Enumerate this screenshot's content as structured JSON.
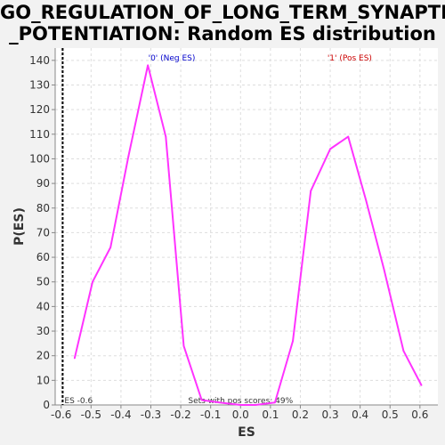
{
  "chart_data": {
    "type": "line",
    "title_lines": [
      "GO_REGULATION_OF_LONG_TERM_SYNAPTIC",
      "_POTENTIATION: Random ES distribution"
    ],
    "xlabel": "ES",
    "ylabel": "P(ES)",
    "xlim": [
      -0.62,
      0.66
    ],
    "ylim": [
      0,
      145
    ],
    "x_ticks": [
      -0.6,
      -0.5,
      -0.4,
      -0.3,
      -0.2,
      -0.1,
      0.0,
      0.1,
      0.2,
      0.3,
      0.4,
      0.5,
      0.6
    ],
    "x_tick_labels": [
      "-0.6",
      "-0.5",
      "-0.4",
      "-0.3",
      "-0.2",
      "-0.1",
      "0.0",
      "0.1",
      "0.2",
      "0.3",
      "0.4",
      "0.5",
      "0.6"
    ],
    "y_ticks": [
      0,
      10,
      20,
      30,
      40,
      50,
      60,
      70,
      80,
      90,
      100,
      110,
      120,
      130,
      140
    ],
    "grid": true,
    "series": [
      {
        "color": "#ff33ff",
        "x": [
          -0.555,
          -0.495,
          -0.435,
          -0.375,
          -0.31,
          -0.25,
          -0.19,
          -0.13,
          -0.07,
          0.0,
          0.05,
          0.115,
          0.175,
          0.235,
          0.3,
          0.36,
          0.42,
          0.48,
          0.545,
          0.605
        ],
        "y": [
          19,
          50,
          64,
          101,
          138,
          109,
          24,
          2,
          1,
          0,
          0,
          1,
          26,
          87,
          104,
          109,
          83,
          55,
          22,
          8
        ]
      }
    ],
    "annotations": {
      "neg_label": "'0' (Neg ES)",
      "pos_label": "'1' (Pos ES)",
      "neg_color": "#0000cc",
      "pos_color": "#cc0000",
      "es_marker_label": "ES -0.6",
      "es_marker_x": -0.595,
      "sets_label": "Sets with pos scores: 49%"
    }
  }
}
